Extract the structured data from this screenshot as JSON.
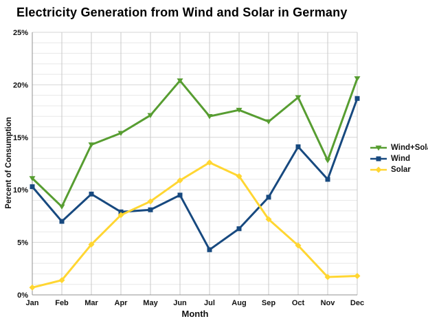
{
  "title": "Electricity Generation from Wind and Solar in Germany",
  "chart_data": {
    "type": "line",
    "title": "Electricity Generation from Wind and Solar in Germany",
    "xlabel": "Month",
    "ylabel": "Percent of Consumption",
    "categories": [
      "Jan",
      "Feb",
      "Mar",
      "Apr",
      "May",
      "Jun",
      "Jul",
      "Aug",
      "Sep",
      "Oct",
      "Nov",
      "Dec"
    ],
    "ylim": [
      0,
      25
    ],
    "y_ticks": [
      0,
      5,
      10,
      15,
      20,
      25
    ],
    "y_tick_labels": [
      "0%",
      "5%",
      "10%",
      "15%",
      "20%",
      "25%"
    ],
    "y_minor_step": 1,
    "y_major_step": 5,
    "grid": true,
    "legend_position": "right",
    "series": [
      {
        "name": "Wind+Solar",
        "color": "#579d31",
        "marker": "triangle-down",
        "values": [
          11.1,
          8.4,
          14.3,
          15.4,
          17.1,
          20.4,
          17.0,
          17.6,
          16.5,
          18.8,
          12.8,
          20.6
        ]
      },
      {
        "name": "Wind",
        "color": "#17497f",
        "marker": "square",
        "values": [
          10.3,
          7.0,
          9.6,
          7.9,
          8.1,
          9.5,
          4.3,
          6.3,
          9.3,
          14.1,
          11.0,
          18.7
        ]
      },
      {
        "name": "Solar",
        "color": "#ffd632",
        "marker": "diamond",
        "values": [
          0.7,
          1.4,
          4.8,
          7.6,
          8.9,
          10.9,
          12.6,
          11.3,
          7.2,
          4.7,
          1.7,
          1.8
        ]
      }
    ],
    "grid_colors": {
      "minor_h": "#e8e8e8",
      "major_h": "#d6d6d6",
      "vertical": "#c8c8c8",
      "axis": "#909090"
    }
  }
}
